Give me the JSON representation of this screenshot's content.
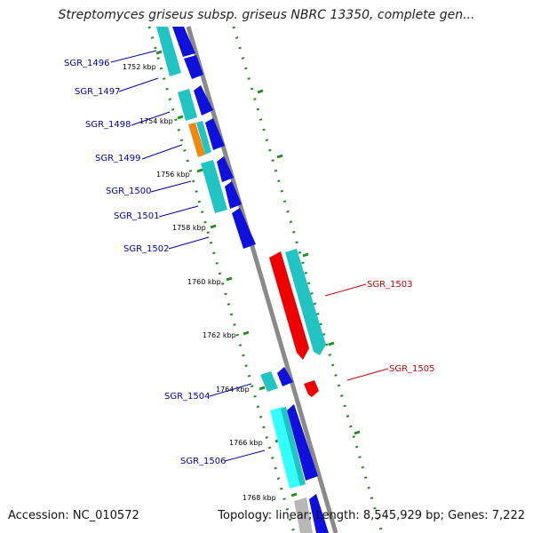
{
  "title": "Streptomyces griseus subsp. griseus NBRC 13350, complete gen...",
  "footer": {
    "accession": "Accession: NC_010572",
    "summary": "Topology: linear; Length: 8,545,929 bp; Genes: 7,222"
  },
  "colors": {
    "backbone": "#8a8a8a",
    "forward_label": "#cc0000",
    "reverse_label": "#0000aa",
    "ticks": "#228b22",
    "blue": "#1010dd",
    "cyan": "#22c3c3",
    "light_cyan": "#33ffff",
    "orange": "#ee8811",
    "red": "#ee0000",
    "gray": "#b8b8b8"
  },
  "scale": {
    "kbp_labels": [
      "1752 kbp",
      "1754 kbp",
      "1756 kbp",
      "1758 kbp",
      "1760 kbp",
      "1762 kbp",
      "1764 kbp",
      "1766 kbp",
      "1768 kbp"
    ]
  },
  "genes": [
    {
      "label": "SGR_1496",
      "strand": "reverse",
      "start_kbp": 1750.9,
      "end_kbp": 1752.1,
      "color": "blue"
    },
    {
      "label": "SGR_1497",
      "strand": "reverse",
      "start_kbp": 1752.8,
      "end_kbp": 1753.6,
      "color": "blue"
    },
    {
      "label": "SGR_1498",
      "strand": "reverse",
      "start_kbp": 1753.8,
      "end_kbp": 1754.6,
      "color": "blue"
    },
    {
      "label": "SGR_1499",
      "strand": "reverse",
      "start_kbp": 1754.9,
      "end_kbp": 1755.4,
      "color": "blue"
    },
    {
      "label": "SGR_1500",
      "strand": "reverse",
      "start_kbp": 1756.2,
      "end_kbp": 1756.6,
      "color": "blue"
    },
    {
      "label": "SGR_1501",
      "strand": "reverse",
      "start_kbp": 1756.8,
      "end_kbp": 1757.4,
      "color": "blue"
    },
    {
      "label": "SGR_1502",
      "strand": "reverse",
      "start_kbp": 1757.6,
      "end_kbp": 1758.6,
      "color": "blue"
    },
    {
      "label": "SGR_1503",
      "strand": "forward",
      "start_kbp": 1759.0,
      "end_kbp": 1762.6,
      "color": "red"
    },
    {
      "label": "SGR_1505",
      "strand": "forward",
      "start_kbp": 1763.5,
      "end_kbp": 1763.8,
      "color": "red"
    },
    {
      "label": "SGR_1504",
      "strand": "reverse",
      "start_kbp": 1763.0,
      "end_kbp": 1763.6,
      "color": "blue"
    },
    {
      "label": "SGR_1506",
      "strand": "reverse",
      "start_kbp": 1764.5,
      "end_kbp": 1766.8,
      "color": "blue"
    }
  ]
}
